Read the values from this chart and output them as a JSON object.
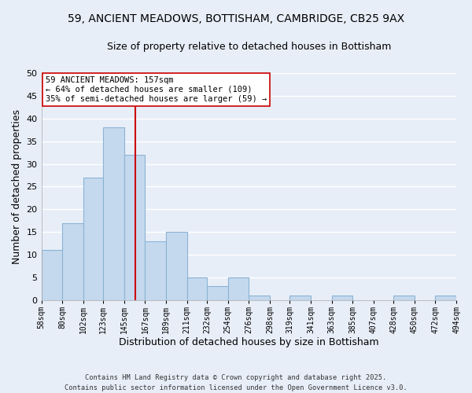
{
  "title1": "59, ANCIENT MEADOWS, BOTTISHAM, CAMBRIDGE, CB25 9AX",
  "title2": "Size of property relative to detached houses in Bottisham",
  "xlabel": "Distribution of detached houses by size in Bottisham",
  "ylabel": "Number of detached properties",
  "bar_color": "#c5d9ee",
  "bar_edge_color": "#8ab4d4",
  "background_color": "#e8eef8",
  "grid_color": "#ffffff",
  "vline_x": 157,
  "vline_color": "#cc0000",
  "bin_edges": [
    58,
    80,
    102,
    123,
    145,
    167,
    189,
    211,
    232,
    254,
    276,
    298,
    319,
    341,
    363,
    385,
    407,
    428,
    450,
    472,
    494
  ],
  "bin_labels": [
    "58sqm",
    "80sqm",
    "102sqm",
    "123sqm",
    "145sqm",
    "167sqm",
    "189sqm",
    "211sqm",
    "232sqm",
    "254sqm",
    "276sqm",
    "298sqm",
    "319sqm",
    "341sqm",
    "363sqm",
    "385sqm",
    "407sqm",
    "428sqm",
    "450sqm",
    "472sqm",
    "494sqm"
  ],
  "counts": [
    11,
    17,
    27,
    38,
    32,
    13,
    15,
    5,
    3,
    5,
    1,
    0,
    1,
    0,
    1,
    0,
    0,
    1,
    0,
    1
  ],
  "ylim": [
    0,
    50
  ],
  "yticks": [
    0,
    5,
    10,
    15,
    20,
    25,
    30,
    35,
    40,
    45,
    50
  ],
  "annotation_line1": "59 ANCIENT MEADOWS: 157sqm",
  "annotation_line2": "← 64% of detached houses are smaller (109)",
  "annotation_line3": "35% of semi-detached houses are larger (59) →",
  "annotation_box_color": "#ffffff",
  "annotation_box_edge": "#cc0000",
  "footer1": "Contains HM Land Registry data © Crown copyright and database right 2025.",
  "footer2": "Contains public sector information licensed under the Open Government Licence v3.0."
}
